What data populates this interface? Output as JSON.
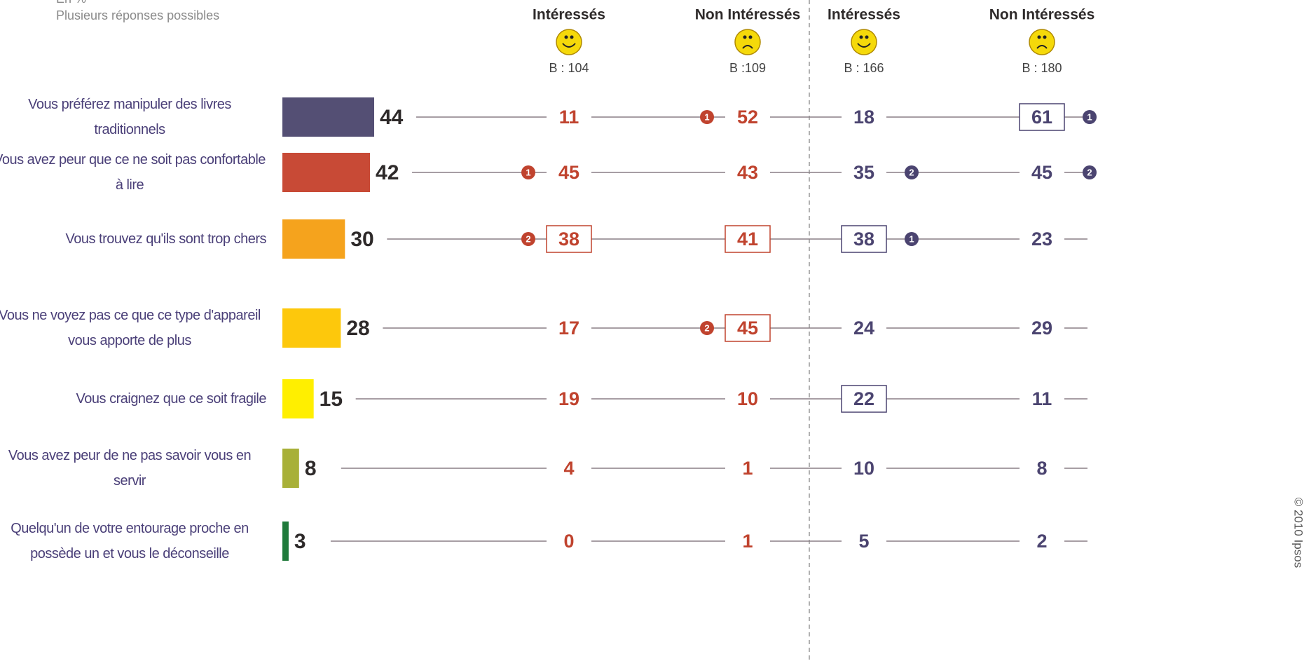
{
  "chart_data": {
    "type": "bar",
    "orientation": "horizontal",
    "subtitle": "En %",
    "note": "Plusieurs réponses possibles",
    "categories": [
      "Vous préférez manipuler des livres traditionnels",
      "Vous avez peur que ce ne soit pas confortable à lire",
      "Vous trouvez qu'ils sont trop chers",
      "Vous ne voyez pas ce que ce type d'appareil vous apporte de plus",
      "Vous craignez que ce soit fragile",
      "Vous avez peur de ne pas savoir vous en servir",
      "Quelqu'un de votre entourage proche en possède un et vous le déconseille"
    ],
    "values": [
      44,
      42,
      30,
      28,
      15,
      8,
      3
    ],
    "colors": [
      "#544f74",
      "#c84a36",
      "#f5a31d",
      "#fdc80c",
      "#ffef00",
      "#a8b038",
      "#1f7a3b"
    ],
    "columns": [
      {
        "header": "Intéressés",
        "base": "B : 104",
        "color": "#c0432e",
        "values": [
          11,
          45,
          38,
          17,
          19,
          4,
          0
        ],
        "boxed": [
          false,
          false,
          true,
          false,
          false,
          false,
          false
        ],
        "ranks": [
          null,
          1,
          2,
          null,
          null,
          null,
          null
        ]
      },
      {
        "header": "Non Intéressés",
        "base": "B :109",
        "color": "#c0432e",
        "values": [
          52,
          43,
          41,
          45,
          10,
          1,
          1
        ],
        "boxed": [
          false,
          false,
          true,
          true,
          false,
          false,
          false
        ],
        "ranks": [
          1,
          null,
          null,
          2,
          null,
          null,
          null
        ]
      },
      {
        "header": "Intéressés",
        "base": "B : 166",
        "color": "#4b4470",
        "values": [
          18,
          35,
          38,
          24,
          22,
          10,
          5
        ],
        "boxed": [
          false,
          false,
          true,
          false,
          true,
          false,
          false
        ],
        "ranks": [
          null,
          2,
          1,
          null,
          null,
          null,
          null
        ]
      },
      {
        "header": "Non Intéressés",
        "base": "B : 180",
        "color": "#4b4470",
        "values": [
          61,
          45,
          23,
          29,
          11,
          8,
          2
        ],
        "boxed": [
          true,
          false,
          false,
          false,
          false,
          false,
          false
        ],
        "ranks": [
          1,
          2,
          null,
          null,
          null,
          null,
          null
        ]
      }
    ],
    "copyright": "© 2010 Ipsos"
  }
}
